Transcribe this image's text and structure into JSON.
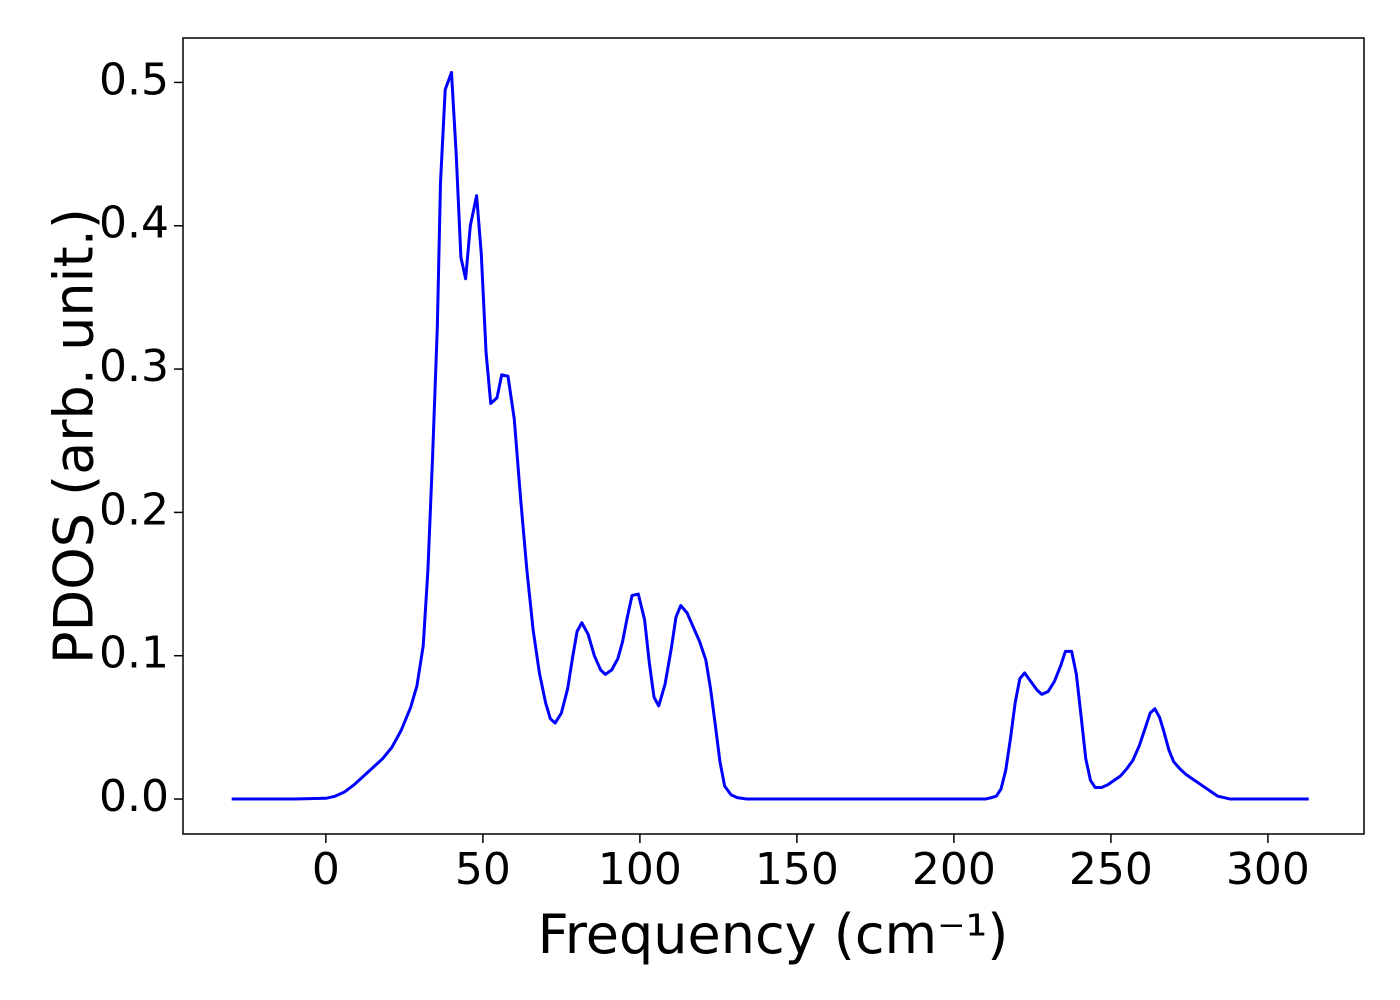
{
  "chart_data": {
    "type": "line",
    "xlabel": "Frequency (cm⁻¹)",
    "ylabel": "PDOS (arb. unit.)",
    "xlim": [
      -45.5,
      330.6
    ],
    "ylim": [
      -0.0244,
      0.531
    ],
    "xticks": [
      0,
      50,
      100,
      150,
      200,
      250,
      300
    ],
    "yticks": [
      {
        "value": 0,
        "label": "0.0"
      },
      0.1,
      0.2,
      0.3,
      0.4,
      0.5
    ],
    "grid": false,
    "x": [
      -30,
      -20,
      -10,
      0,
      3,
      6,
      9,
      12,
      15,
      18,
      21,
      24,
      27,
      29,
      31,
      32.5,
      34,
      35.5,
      36.5,
      38,
      40,
      41.5,
      43,
      44.5,
      46,
      48,
      49.5,
      51,
      52.5,
      54.5,
      56,
      58,
      60,
      62,
      64,
      66,
      68,
      70,
      71.5,
      73,
      75,
      77,
      78.5,
      80,
      81.5,
      83.5,
      85.5,
      87.5,
      89,
      91,
      93,
      94.5,
      96,
      97.5,
      99.5,
      101.5,
      103,
      104.5,
      106,
      108,
      110,
      111.5,
      113,
      115,
      117,
      119,
      121,
      122.5,
      124,
      125.5,
      127,
      129,
      131,
      134,
      200,
      210,
      212,
      213.5,
      215,
      216.5,
      218,
      219.5,
      221,
      222.5,
      224.5,
      226.5,
      228,
      230,
      232,
      234,
      235.5,
      237.5,
      239,
      240.5,
      242,
      243.5,
      245,
      247,
      249,
      251,
      253,
      255,
      257,
      259,
      261,
      262.5,
      264,
      265.5,
      267,
      268.5,
      270,
      272,
      274,
      276,
      278,
      280,
      282,
      284,
      286,
      288,
      300,
      313
    ],
    "series": [
      {
        "color": "#0000ff",
        "values": [
          0,
          0,
          0,
          0.0005,
          0.002,
          0.005,
          0.01,
          0.016,
          0.022,
          0.028,
          0.036,
          0.048,
          0.064,
          0.079,
          0.107,
          0.16,
          0.24,
          0.33,
          0.43,
          0.495,
          0.507,
          0.45,
          0.378,
          0.363,
          0.4,
          0.421,
          0.38,
          0.312,
          0.276,
          0.28,
          0.296,
          0.295,
          0.265,
          0.21,
          0.16,
          0.118,
          0.088,
          0.067,
          0.056,
          0.053,
          0.06,
          0.077,
          0.098,
          0.117,
          0.123,
          0.115,
          0.1,
          0.09,
          0.087,
          0.09,
          0.098,
          0.11,
          0.127,
          0.142,
          0.143,
          0.125,
          0.095,
          0.071,
          0.065,
          0.08,
          0.105,
          0.127,
          0.135,
          0.13,
          0.12,
          0.11,
          0.097,
          0.077,
          0.052,
          0.026,
          0.009,
          0.003,
          0.001,
          0,
          0,
          0,
          0.001,
          0.002,
          0.007,
          0.02,
          0.042,
          0.067,
          0.084,
          0.088,
          0.082,
          0.076,
          0.073,
          0.075,
          0.082,
          0.093,
          0.103,
          0.103,
          0.087,
          0.058,
          0.028,
          0.013,
          0.008,
          0.008,
          0.01,
          0.013,
          0.016,
          0.021,
          0.027,
          0.037,
          0.05,
          0.06,
          0.063,
          0.057,
          0.046,
          0.034,
          0.026,
          0.021,
          0.017,
          0.014,
          0.011,
          0.008,
          0.005,
          0.002,
          0.001,
          0,
          0,
          0
        ]
      }
    ]
  }
}
